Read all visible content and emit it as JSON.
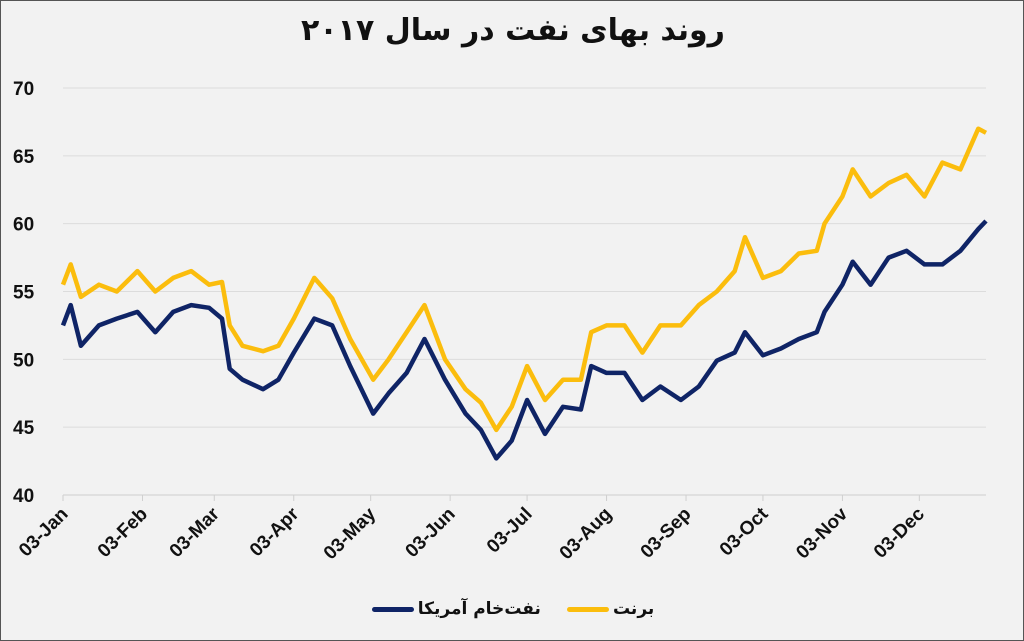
{
  "chart_data": {
    "type": "line",
    "title": "روند بهای نفت در سال ۲۰۱۷",
    "xlabel": "",
    "ylabel": "",
    "ylim": [
      40,
      70
    ],
    "yticks": [
      40,
      45,
      50,
      55,
      60,
      65,
      70
    ],
    "xlim": [
      "2017-01-03",
      "2017-12-29"
    ],
    "xticks": [
      {
        "date": "2017-01-03",
        "label": "03-Jan"
      },
      {
        "date": "2017-02-03",
        "label": "03-Feb"
      },
      {
        "date": "2017-03-03",
        "label": "03-Mar"
      },
      {
        "date": "2017-04-03",
        "label": "03-Apr"
      },
      {
        "date": "2017-05-03",
        "label": "03-May"
      },
      {
        "date": "2017-06-03",
        "label": "03-Jun"
      },
      {
        "date": "2017-07-03",
        "label": "03-Jul"
      },
      {
        "date": "2017-08-03",
        "label": "03-Aug"
      },
      {
        "date": "2017-09-03",
        "label": "03-Sep"
      },
      {
        "date": "2017-10-03",
        "label": "03-Oct"
      },
      {
        "date": "2017-11-03",
        "label": "03-Nov"
      },
      {
        "date": "2017-12-03",
        "label": "03-Dec"
      }
    ],
    "grid": "horizontal",
    "legend_position": "bottom",
    "x": [
      "2017-01-03",
      "2017-01-06",
      "2017-01-10",
      "2017-01-17",
      "2017-01-24",
      "2017-02-01",
      "2017-02-08",
      "2017-02-15",
      "2017-02-22",
      "2017-03-01",
      "2017-03-06",
      "2017-03-09",
      "2017-03-14",
      "2017-03-22",
      "2017-03-28",
      "2017-04-03",
      "2017-04-11",
      "2017-04-18",
      "2017-04-25",
      "2017-05-04",
      "2017-05-10",
      "2017-05-17",
      "2017-05-24",
      "2017-06-01",
      "2017-06-09",
      "2017-06-15",
      "2017-06-21",
      "2017-06-27",
      "2017-07-03",
      "2017-07-10",
      "2017-07-17",
      "2017-07-24",
      "2017-07-28",
      "2017-08-03",
      "2017-08-10",
      "2017-08-17",
      "2017-08-24",
      "2017-09-01",
      "2017-09-08",
      "2017-09-15",
      "2017-09-22",
      "2017-09-26",
      "2017-10-03",
      "2017-10-10",
      "2017-10-17",
      "2017-10-24",
      "2017-10-27",
      "2017-11-03",
      "2017-11-07",
      "2017-11-14",
      "2017-11-21",
      "2017-11-28",
      "2017-12-05",
      "2017-12-12",
      "2017-12-19",
      "2017-12-26",
      "2017-12-29"
    ],
    "series": [
      {
        "name": "برنت",
        "color": "#fbbd0d",
        "values": [
          55.5,
          57,
          54.6,
          55.5,
          55,
          56.5,
          55,
          56,
          56.5,
          55.5,
          55.7,
          52.5,
          51,
          50.6,
          51,
          53,
          56,
          54.5,
          51.5,
          48.5,
          50,
          52,
          54,
          50,
          47.8,
          46.8,
          44.8,
          46.5,
          49.5,
          47,
          48.5,
          48.5,
          52,
          52.5,
          52.5,
          50.5,
          52.5,
          52.5,
          54,
          55,
          56.5,
          59,
          56,
          56.5,
          57.8,
          58,
          60,
          62,
          64,
          62,
          63,
          63.6,
          62,
          64.5,
          64,
          67,
          66.7
        ]
      },
      {
        "name": "نفت‌خام آمریکا",
        "color": "#0f2466",
        "values": [
          52.5,
          54,
          51,
          52.5,
          53,
          53.5,
          52,
          53.5,
          54,
          53.8,
          53,
          49.3,
          48.5,
          47.8,
          48.5,
          50.5,
          53,
          52.5,
          49.5,
          46,
          47.5,
          49,
          51.5,
          48.5,
          46,
          44.8,
          42.7,
          44,
          47,
          44.5,
          46.5,
          46.3,
          49.5,
          49,
          49,
          47,
          48,
          47,
          48,
          49.9,
          50.5,
          52,
          50.3,
          50.8,
          51.5,
          52,
          53.5,
          55.5,
          57.2,
          55.5,
          57.5,
          58,
          57,
          57,
          58,
          59.6,
          60.2
        ]
      }
    ]
  }
}
